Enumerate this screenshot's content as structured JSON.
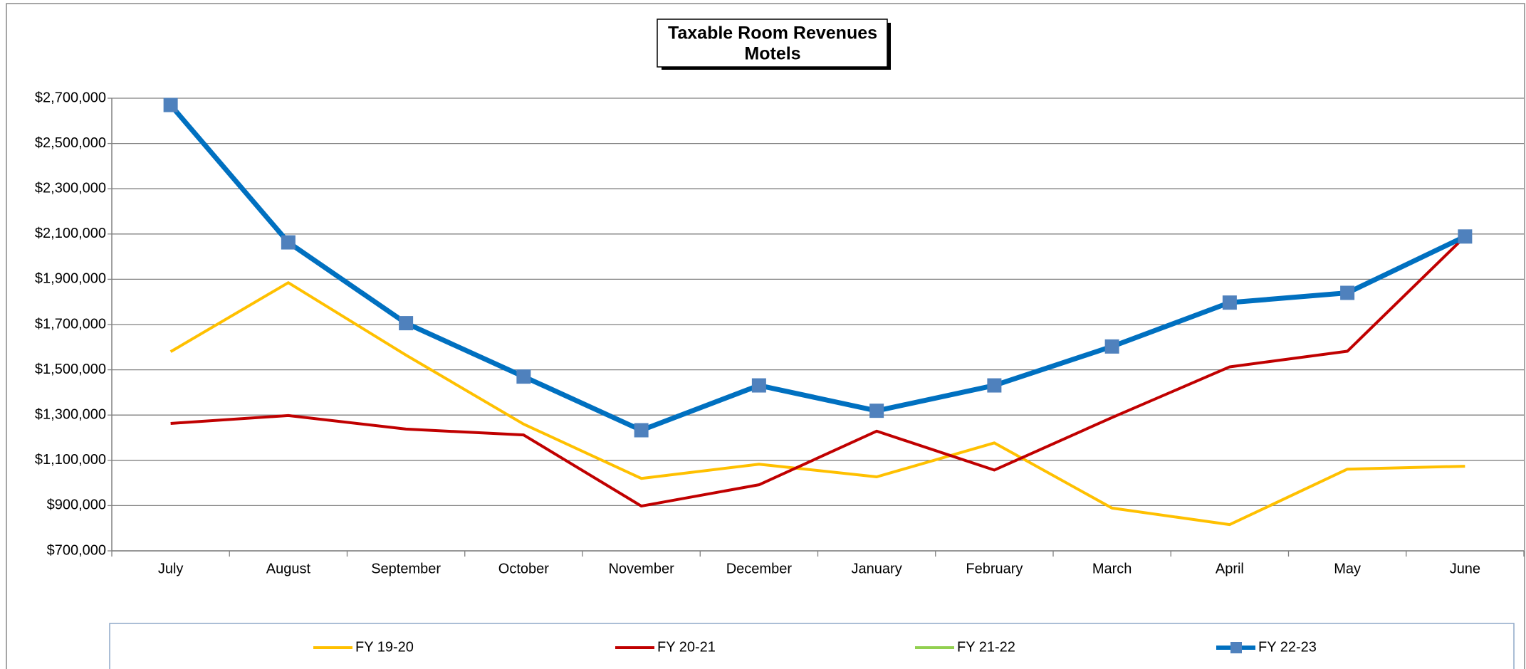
{
  "chart_data": {
    "type": "line",
    "title": "Taxable Room Revenues",
    "subtitle": "Motels",
    "categories": [
      "July",
      "August",
      "September",
      "October",
      "November",
      "December",
      "January",
      "February",
      "March",
      "April",
      "May",
      "June"
    ],
    "series": [
      {
        "name": "FY 19-20",
        "color": "#ffc000",
        "values": [
          1580000,
          1885000,
          1565000,
          1260000,
          1020000,
          1083000,
          1027000,
          1177000,
          889000,
          816000,
          1061000,
          1074000
        ]
      },
      {
        "name": "FY 20-21",
        "color": "#c00000",
        "values": [
          1263000,
          1298000,
          1238000,
          1212000,
          898000,
          992000,
          1229000,
          1057000,
          1289000,
          1513000,
          1582000,
          2089000
        ]
      },
      {
        "name": "FY 21-22",
        "color": "#92d050",
        "values": [
          null,
          null,
          null,
          null,
          null,
          null,
          null,
          null,
          null,
          null,
          null,
          null
        ]
      },
      {
        "name": "FY 22-23",
        "color": "#0070c0",
        "marker": "square",
        "marker_color": "#4f81bd",
        "values": [
          2670000,
          2063000,
          1706000,
          1470000,
          1233000,
          1431000,
          1319000,
          1431000,
          1603000,
          1797000,
          1840000,
          2089000
        ]
      }
    ],
    "ylim": [
      700000,
      2700000
    ],
    "yticks": [
      {
        "value": 700000,
        "label": "$700,000"
      },
      {
        "value": 900000,
        "label": "$900,000"
      },
      {
        "value": 1100000,
        "label": "$1,100,000"
      },
      {
        "value": 1300000,
        "label": "$1,300,000"
      },
      {
        "value": 1500000,
        "label": "$1,500,000"
      },
      {
        "value": 1700000,
        "label": "$1,700,000"
      },
      {
        "value": 1900000,
        "label": "$1,900,000"
      },
      {
        "value": 2100000,
        "label": "$2,100,000"
      },
      {
        "value": 2300000,
        "label": "$2,300,000"
      },
      {
        "value": 2500000,
        "label": "$2,500,000"
      },
      {
        "value": 2700000,
        "label": "$2,700,000"
      }
    ],
    "grid": true,
    "legend": "bottom"
  }
}
